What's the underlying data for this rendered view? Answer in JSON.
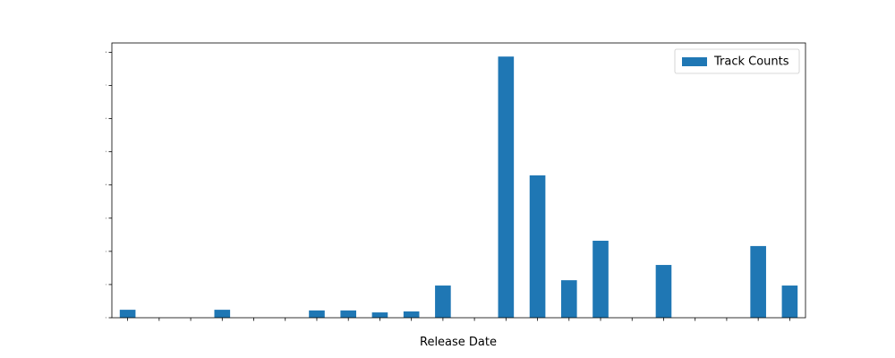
{
  "chart_data": {
    "type": "bar",
    "xlabel": "Release Date",
    "categories": [
      null,
      null,
      null,
      null,
      null,
      null,
      null,
      null,
      null,
      null,
      null,
      null,
      null,
      null,
      null,
      null,
      null,
      null,
      null,
      null,
      null,
      null
    ],
    "series": [
      {
        "name": "Track Counts",
        "color": "#1f77b4",
        "values": [
          0.24,
          0,
          0,
          0.24,
          0,
          0,
          0.22,
          0.22,
          0.16,
          0.19,
          0.97,
          0,
          7.87,
          4.29,
          1.13,
          2.32,
          0,
          1.59,
          0,
          0,
          2.16,
          0.97
        ]
      }
    ],
    "ylim": [
      0,
      8.28
    ],
    "yticks": [
      0,
      1,
      2,
      3,
      4,
      5,
      6,
      7,
      8
    ],
    "legend": "upper right"
  }
}
